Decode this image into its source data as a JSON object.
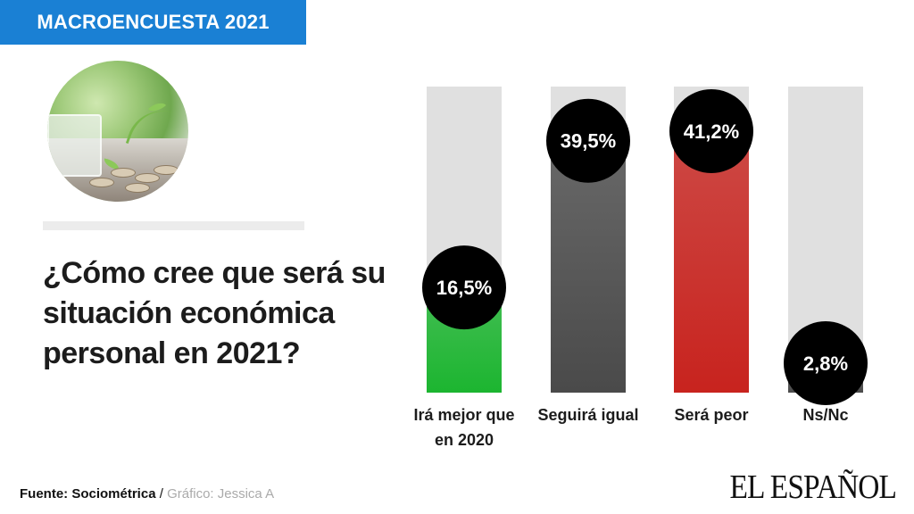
{
  "header": {
    "badge": "MACROENCUESTA 2021"
  },
  "question": "¿Cómo cree que será su situación económica personal en 2021?",
  "footer": {
    "source_label": "Fuente: Sociométrica",
    "separator": " / ",
    "credit": "Gráfico: Jessica A",
    "logo": "EL ESPAÑOL"
  },
  "colors": {
    "badge": "#1a80d4",
    "track": "#e0e0e0",
    "green": "#1cb530",
    "gray": "#4a4a4a",
    "red": "#c8231e",
    "dark": "#4a4a4a",
    "bubble": "#000000"
  },
  "chart_data": {
    "type": "bar",
    "title": "¿Cómo cree que será su situación económica personal en 2021?",
    "categories": [
      "Irá mejor que en 2020",
      "Seguirá igual",
      "Será peor",
      "Ns/Nc"
    ],
    "category_lines": [
      [
        "Irá mejor que",
        "en 2020"
      ],
      [
        "Seguirá igual"
      ],
      [
        "Será peor"
      ],
      [
        "Ns/Nc"
      ]
    ],
    "values": [
      16.5,
      39.5,
      41.2,
      2.8
    ],
    "value_labels": [
      "16,5%",
      "39,5%",
      "41,2%",
      "2,8%"
    ],
    "bar_colors": [
      "green",
      "gray",
      "red",
      "dark"
    ],
    "ylim": [
      0,
      48
    ],
    "unit": "%",
    "grid": false,
    "legend": "none"
  }
}
